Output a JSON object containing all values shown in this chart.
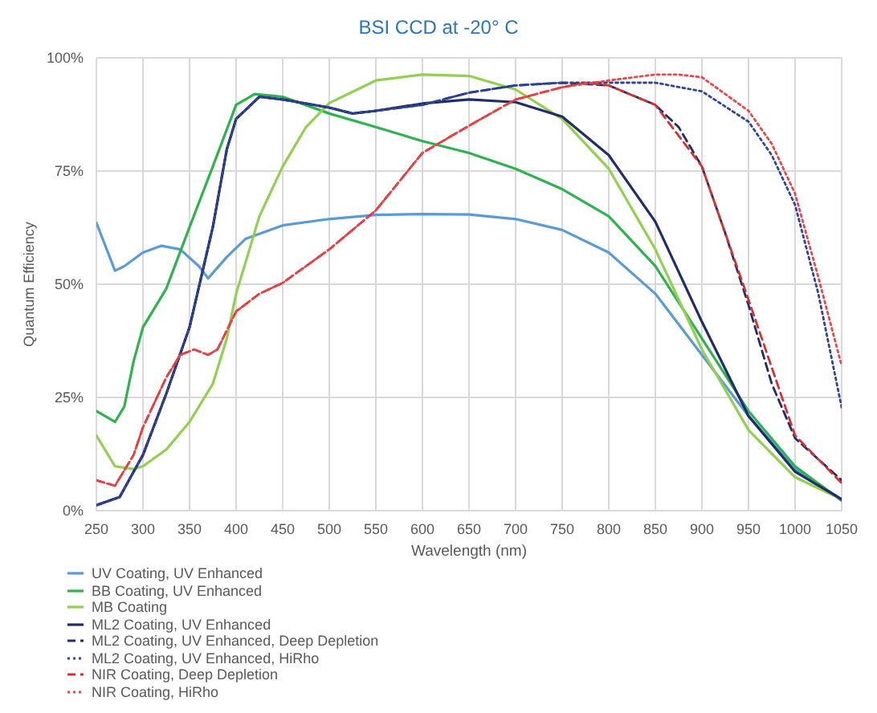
{
  "chart_data": {
    "type": "line",
    "title": "BSI CCD at -20° C",
    "xlabel": "Wavelength (nm)",
    "ylabel": "Quantum Efficiency",
    "xlim": [
      250,
      1050
    ],
    "xticks": [
      250,
      300,
      350,
      400,
      450,
      500,
      550,
      600,
      650,
      700,
      750,
      800,
      850,
      900,
      950,
      1000,
      1050
    ],
    "ylim": [
      0,
      100
    ],
    "yticks": [
      {
        "value": 0,
        "label": "0%"
      },
      {
        "value": 25,
        "label": "25%"
      },
      {
        "value": 50,
        "label": "50%"
      },
      {
        "value": 75,
        "label": "75%"
      },
      {
        "value": 100,
        "label": "100%"
      }
    ],
    "grid": true,
    "legend": "bottom left",
    "marker": "none",
    "series": [
      {
        "name": "UV Coating, UV Enhanced",
        "color": "#5b9bd5",
        "line_style": "solid",
        "x": [
          250,
          270,
          280,
          300,
          320,
          340,
          360,
          370,
          390,
          410,
          450,
          500,
          550,
          600,
          650,
          700,
          750,
          800,
          850,
          900,
          950,
          1000,
          1050
        ],
        "values": [
          63.6,
          53,
          54,
          57,
          58.5,
          57.7,
          54,
          51.3,
          56,
          60,
          63,
          64.4,
          65.3,
          65.5,
          65.4,
          64.4,
          62,
          57,
          47.9,
          34.4,
          20.9,
          9.2,
          2.5
        ]
      },
      {
        "name": "BB Coating, UV Enhanced",
        "color": "#2eb34f",
        "line_style": "solid",
        "x": [
          250,
          270,
          280,
          290,
          300,
          325,
          350,
          375,
          400,
          420,
          450,
          500,
          550,
          600,
          650,
          700,
          750,
          800,
          850,
          900,
          950,
          1000,
          1050
        ],
        "values": [
          22,
          19.6,
          23,
          33,
          40.5,
          49,
          62.6,
          76,
          89.6,
          92,
          91.4,
          87.7,
          84.7,
          81.6,
          79,
          75.5,
          71,
          65,
          54,
          38,
          22,
          9.8,
          2.2
        ]
      },
      {
        "name": "MB Coating",
        "color": "#92d050",
        "line_style": "solid",
        "x": [
          250,
          270,
          290,
          300,
          325,
          350,
          375,
          390,
          400,
          425,
          450,
          475,
          500,
          550,
          600,
          650,
          700,
          750,
          800,
          850,
          900,
          950,
          1000,
          1050
        ],
        "values": [
          16.6,
          9.8,
          9.2,
          9.8,
          13.5,
          19.6,
          28,
          38,
          47.9,
          65,
          76,
          84.7,
          90,
          95,
          96.3,
          96,
          93,
          86.5,
          75.5,
          57.7,
          35.6,
          17.8,
          7.4,
          2.5
        ]
      },
      {
        "name": "ML2 Coating, UV Enhanced",
        "color": "#1f2d6b",
        "line_style": "solid",
        "x": [
          250,
          275,
          290,
          300,
          325,
          350,
          375,
          390,
          400,
          425,
          450,
          500,
          525,
          550,
          600,
          650,
          700,
          750,
          800,
          850,
          900,
          950,
          1000,
          1050
        ],
        "values": [
          1.2,
          3,
          8.6,
          12.3,
          25.8,
          40.5,
          62.6,
          79.8,
          86.5,
          91.4,
          90.8,
          89,
          87.7,
          88.3,
          89.9,
          90.8,
          90.2,
          87,
          78.5,
          63.8,
          41.7,
          20.9,
          8.6,
          2.5
        ]
      },
      {
        "name": "ML2 Coating, UV Enhanced, Deep Depletion",
        "color": "#1f2d6b",
        "line_style": "dashed",
        "x": [
          250,
          275,
          290,
          300,
          325,
          350,
          375,
          390,
          400,
          425,
          450,
          500,
          525,
          550,
          600,
          650,
          700,
          750,
          800,
          850,
          875,
          900,
          925,
          950,
          975,
          1000,
          1050
        ],
        "values": [
          1.2,
          3,
          8.6,
          12.3,
          25.8,
          40.5,
          62.6,
          79.8,
          86.5,
          91.4,
          90.8,
          89,
          87.7,
          88.3,
          89.6,
          92.3,
          93.9,
          94.5,
          93.9,
          89.6,
          84.7,
          76,
          61.3,
          45.4,
          28,
          16,
          6.7
        ]
      },
      {
        "name": "ML2 Coating, UV Enhanced, HiRho",
        "color": "#2f4598",
        "line_style": "dotted",
        "x": [
          250,
          275,
          290,
          300,
          325,
          350,
          375,
          390,
          400,
          425,
          450,
          500,
          525,
          550,
          600,
          650,
          700,
          750,
          800,
          850,
          900,
          950,
          975,
          1000,
          1025,
          1050
        ],
        "values": [
          1.2,
          3,
          8.6,
          12.3,
          25.8,
          40.5,
          62.6,
          79.8,
          86.5,
          91.4,
          90.8,
          89,
          87.7,
          88.3,
          89.6,
          92.3,
          93.9,
          94.5,
          94.5,
          94.5,
          92.6,
          85.9,
          78.5,
          67.5,
          47.9,
          22.8
        ]
      },
      {
        "name": "NIR Coating, Deep Depletion",
        "color": "#d63031",
        "line_style": "dashed",
        "x": [
          250,
          270,
          290,
          300,
          325,
          340,
          355,
          370,
          380,
          400,
          425,
          450,
          500,
          550,
          600,
          650,
          700,
          750,
          775,
          800,
          850,
          900,
          950,
          1000,
          1050
        ],
        "values": [
          6.7,
          5.5,
          12.3,
          18.4,
          29.4,
          34.4,
          35.6,
          34.4,
          35.6,
          44,
          47.9,
          50.3,
          57.7,
          66.3,
          79,
          85,
          90.8,
          93.5,
          94.5,
          93.9,
          89.6,
          76,
          46.6,
          16.6,
          6.1
        ]
      },
      {
        "name": "NIR Coating, HiRho",
        "color": "#e8474a",
        "line_style": "dotted",
        "x": [
          250,
          270,
          290,
          300,
          325,
          340,
          355,
          370,
          380,
          400,
          425,
          450,
          500,
          550,
          600,
          650,
          700,
          750,
          800,
          850,
          875,
          900,
          950,
          975,
          1000,
          1025,
          1050
        ],
        "values": [
          6.7,
          5.5,
          12.3,
          18.4,
          29.4,
          34.4,
          35.6,
          34.4,
          35.6,
          44,
          47.9,
          50.3,
          57.7,
          66.3,
          79,
          85,
          90.8,
          93.5,
          95,
          96.3,
          96.3,
          95.7,
          88.3,
          81,
          70,
          51.5,
          32
        ]
      }
    ]
  }
}
